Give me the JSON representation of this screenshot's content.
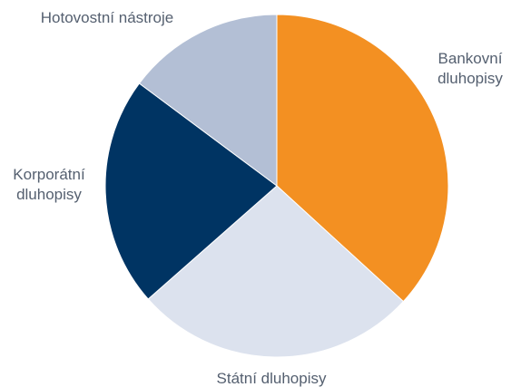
{
  "chart_data": {
    "type": "pie",
    "title": "",
    "start_angle_deg": 0,
    "direction": "clockwise",
    "slices": [
      {
        "label_lines": [
          "Bankovní",
          "dluhopisy"
        ],
        "value": 36.8,
        "color": "#F39022"
      },
      {
        "label_lines": [
          "Státní dluhopisy"
        ],
        "value": 26.7,
        "color": "#DCE2EE"
      },
      {
        "label_lines": [
          "Korporátní",
          "dluhopisy"
        ],
        "value": 21.7,
        "color": "#003463"
      },
      {
        "label_lines": [
          "Hotovostní nástroje"
        ],
        "value": 14.8,
        "color": "#B3BFD5"
      }
    ],
    "separator_color": "#ffffff",
    "label_color": "#556070"
  }
}
